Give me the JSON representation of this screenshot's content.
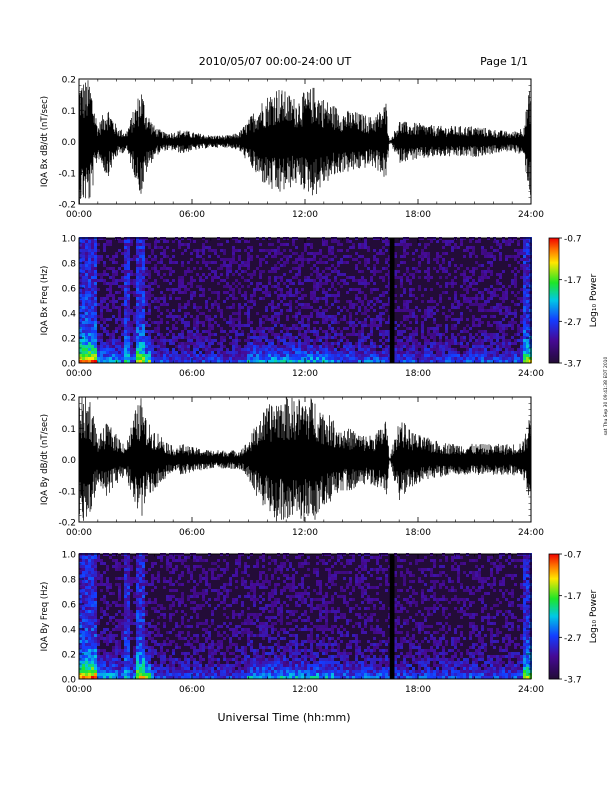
{
  "header": {
    "title": "2010/05/07  00:00-24:00 UT",
    "page": "Page 1/1"
  },
  "side_note": "sat Thu Sep 30 09:41:38 EDT 2010",
  "colors": {
    "waveform": "#000000",
    "spectro_bg": "#230c38",
    "frame": "#000000"
  },
  "chart_data": [
    {
      "type": "line",
      "title": "",
      "ylabel": "IQA Bx dB/dt (nT/sec)",
      "xlabel": "",
      "xlim": [
        0,
        24
      ],
      "ylim": [
        -0.2,
        0.2
      ],
      "x_ticks": [
        "00:00",
        "06:00",
        "12:00",
        "18:00",
        "24:00"
      ],
      "y_ticks": [
        "-0.2",
        "-0.1",
        "0.0",
        "0.1",
        "0.2"
      ],
      "series": [
        {
          "envelope_hours": [
            0,
            0.2,
            0.6,
            1.0,
            1.5,
            2.0,
            2.5,
            3.0,
            3.3,
            3.6,
            4.0,
            4.5,
            5.0,
            5.5,
            6.0,
            7.0,
            8.0,
            8.5,
            9.0,
            9.5,
            10.0,
            10.5,
            11.0,
            11.5,
            12.0,
            12.5,
            13.0,
            13.5,
            14.0,
            14.5,
            15.0,
            15.5,
            16.0,
            16.3,
            16.5,
            17.0,
            17.5,
            18.0,
            19.0,
            20.0,
            21.0,
            22.0,
            23.0,
            23.6,
            24.0
          ],
          "envelope_amplitude": [
            0.2,
            0.2,
            0.2,
            0.05,
            0.12,
            0.05,
            0.03,
            0.12,
            0.18,
            0.1,
            0.05,
            0.03,
            0.03,
            0.04,
            0.03,
            0.02,
            0.02,
            0.03,
            0.07,
            0.12,
            0.15,
            0.18,
            0.16,
            0.14,
            0.16,
            0.18,
            0.14,
            0.12,
            0.1,
            0.1,
            0.09,
            0.08,
            0.1,
            0.13,
            0.0,
            0.07,
            0.06,
            0.06,
            0.05,
            0.05,
            0.05,
            0.04,
            0.03,
            0.05,
            0.2
          ]
        }
      ]
    },
    {
      "type": "heatmap",
      "title": "",
      "ylabel": "IQA Bx Freq (Hz)",
      "xlabel": "",
      "xlim": [
        0,
        24
      ],
      "ylim": [
        0.0,
        1.0
      ],
      "x_ticks": [
        "00:00",
        "06:00",
        "12:00",
        "18:00",
        "24:00"
      ],
      "y_ticks": [
        "0.0",
        "0.2",
        "0.4",
        "0.6",
        "0.8",
        "1.0"
      ],
      "colorbar": {
        "label": "Log₁₀ Power",
        "range": [
          -3.7,
          -0.7
        ],
        "ticks": [
          "-0.7",
          "-1.7",
          "-2.7",
          "-3.7"
        ]
      },
      "data_gap_hours": [
        16.5,
        16.75
      ]
    },
    {
      "type": "line",
      "title": "",
      "ylabel": "IQA By dB/dt (nT/sec)",
      "xlabel": "",
      "xlim": [
        0,
        24
      ],
      "ylim": [
        -0.2,
        0.2
      ],
      "x_ticks": [
        "00:00",
        "06:00",
        "12:00",
        "18:00",
        "24:00"
      ],
      "y_ticks": [
        "-0.2",
        "-0.1",
        "0.0",
        "0.1",
        "0.2"
      ],
      "series": [
        {
          "envelope_hours": [
            0,
            0.2,
            0.6,
            1.0,
            1.5,
            2.0,
            2.5,
            3.0,
            3.3,
            3.6,
            4.0,
            4.5,
            5.0,
            5.5,
            6.0,
            7.0,
            8.0,
            8.5,
            9.0,
            9.5,
            10.0,
            10.5,
            11.0,
            11.5,
            12.0,
            12.5,
            13.0,
            13.5,
            14.0,
            14.5,
            15.0,
            15.5,
            16.0,
            16.3,
            16.5,
            17.0,
            17.5,
            18.0,
            19.0,
            20.0,
            21.0,
            22.0,
            23.0,
            23.6,
            24.0
          ],
          "envelope_amplitude": [
            0.2,
            0.2,
            0.2,
            0.07,
            0.12,
            0.08,
            0.05,
            0.16,
            0.2,
            0.12,
            0.1,
            0.07,
            0.04,
            0.05,
            0.04,
            0.03,
            0.03,
            0.03,
            0.06,
            0.13,
            0.17,
            0.2,
            0.2,
            0.2,
            0.2,
            0.2,
            0.16,
            0.13,
            0.1,
            0.1,
            0.08,
            0.08,
            0.1,
            0.14,
            0.0,
            0.14,
            0.1,
            0.08,
            0.06,
            0.05,
            0.05,
            0.05,
            0.05,
            0.06,
            0.16
          ]
        }
      ]
    },
    {
      "type": "heatmap",
      "title": "",
      "ylabel": "IQA By Freq (Hz)",
      "xlabel": "Universal Time (hh:mm)",
      "xlim": [
        0,
        24
      ],
      "ylim": [
        0.0,
        1.0
      ],
      "x_ticks": [
        "00:00",
        "06:00",
        "12:00",
        "18:00",
        "24:00"
      ],
      "y_ticks": [
        "0.0",
        "0.2",
        "0.4",
        "0.6",
        "0.8",
        "1.0"
      ],
      "colorbar": {
        "label": "Log₁₀ Power",
        "range": [
          -3.7,
          -0.7
        ],
        "ticks": [
          "-0.7",
          "-1.7",
          "-2.7",
          "-3.7"
        ]
      },
      "data_gap_hours": [
        16.5,
        16.75
      ]
    }
  ]
}
